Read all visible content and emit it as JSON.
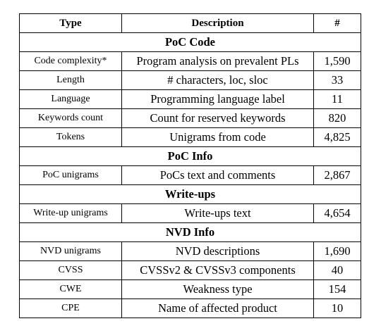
{
  "table": {
    "headers": [
      "Type",
      "Description",
      "#"
    ],
    "rows": [
      {
        "kind": "section",
        "label": "PoC Code"
      },
      {
        "kind": "data",
        "type": "Code complexity*",
        "description": "Program analysis on prevalent PLs",
        "count": "1,590"
      },
      {
        "kind": "data",
        "type": "Length",
        "description": "# characters, loc, sloc",
        "count": "33"
      },
      {
        "kind": "data",
        "type": "Language",
        "description": "Programming language label",
        "count": "11"
      },
      {
        "kind": "data",
        "type": "Keywords count",
        "description": "Count for reserved keywords",
        "count": "820"
      },
      {
        "kind": "data",
        "type": "Tokens",
        "description": "Unigrams from code",
        "count": "4,825"
      },
      {
        "kind": "section",
        "label": "PoC Info"
      },
      {
        "kind": "data",
        "type": "PoC unigrams",
        "description": "PoCs text and comments",
        "count": "2,867"
      },
      {
        "kind": "section",
        "label": "Write-ups"
      },
      {
        "kind": "data",
        "type": "Write-up unigrams",
        "description": "Write-ups text",
        "count": "4,654"
      },
      {
        "kind": "section",
        "label": "NVD Info"
      },
      {
        "kind": "data",
        "type": "NVD unigrams",
        "description": "NVD descriptions",
        "count": "1,690"
      },
      {
        "kind": "data",
        "type": "CVSS",
        "description": "CVSSv2 & CVSSv3 components",
        "count": "40"
      },
      {
        "kind": "data",
        "type": "CWE",
        "description": "Weakness type",
        "count": "154"
      },
      {
        "kind": "data",
        "type": "CPE",
        "description": "Name of affected product",
        "count": "10"
      }
    ]
  }
}
